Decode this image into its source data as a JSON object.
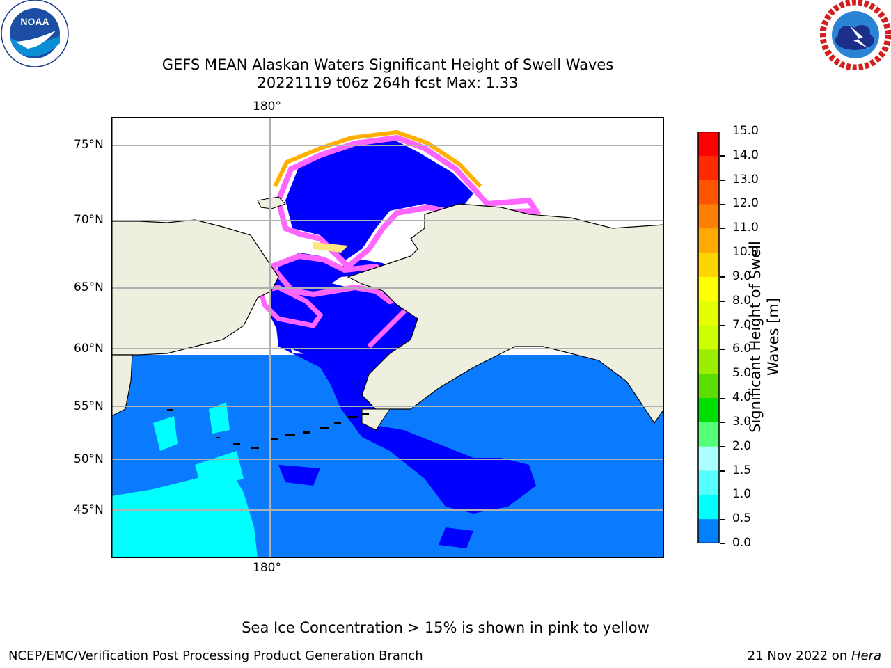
{
  "header": {
    "title_line1": "GEFS MEAN Alaskan Waters Significant Height of Swell Waves",
    "title_line2": "20221119 t06z 264h fcst   Max: 1.33"
  },
  "logos": {
    "noaa": {
      "text": "NOAA",
      "ring_text_top": "NATIONAL OCEANIC AND ATMOSPHERIC ADMINISTRATION",
      "ring_text_bottom": "U.S. DEPARTMENT OF COMMERCE"
    },
    "nws": {
      "ring_text": "NATIONAL WEATHER SERVICE"
    }
  },
  "map": {
    "lon_label_top": "180°",
    "lon_label_bottom": "180°",
    "lat_labels": [
      "75°N",
      "70°N",
      "65°N",
      "60°N",
      "55°N",
      "50°N",
      "45°N"
    ],
    "colors": {
      "land": "#efefdf",
      "ocean_low": "#0a7aff",
      "ocean_min": "#0000ff",
      "swell_1": "#00ffff",
      "ice_low": "#ff66ff",
      "ice_high": "#ffe600"
    }
  },
  "colorbar": {
    "label_line1": "Significant Height of Swell",
    "label_line2": "Waves [m]",
    "ticks": [
      "15.0",
      "14.0",
      "13.0",
      "12.0",
      "11.0",
      "10.0",
      "9.0",
      "8.0",
      "7.0",
      "6.0",
      "5.0",
      "4.0",
      "3.0",
      "2.0",
      "1.5",
      "1.0",
      "0.5",
      "0.0"
    ],
    "colors": [
      "#ff0000",
      "#ff2a00",
      "#ff5500",
      "#ff8000",
      "#ffaa00",
      "#ffd500",
      "#ffff00",
      "#e5ff00",
      "#ccff00",
      "#9cee00",
      "#5bdd00",
      "#00dd00",
      "#55ff77",
      "#aaffff",
      "#55ffff",
      "#00ffff",
      "#0080ff",
      "#0000ff"
    ]
  },
  "footer": {
    "note": "Sea Ice Concentration > 15% is shown in pink to yellow",
    "credit": "NCEP/EMC/Verification Post Processing Product Generation Branch",
    "date": "21 Nov 2022 on ",
    "machine": "Hera"
  }
}
